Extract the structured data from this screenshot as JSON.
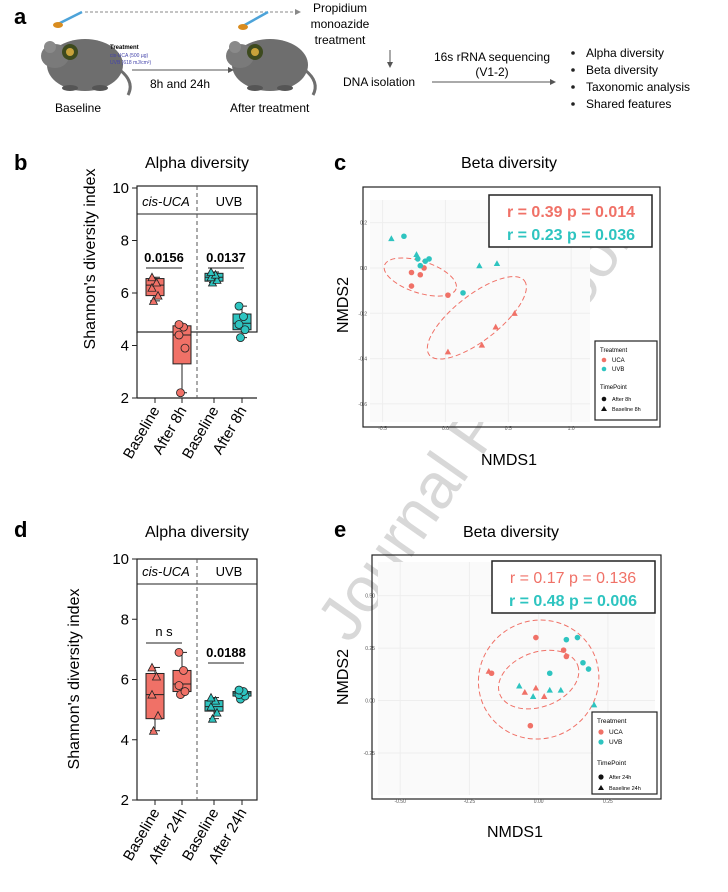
{
  "colors": {
    "uca": "#f07167",
    "uvb": "#2ec4c0",
    "dark": "#222222",
    "grid": "#eeeeee"
  },
  "panel_a": {
    "letter": "a",
    "treatment_title": "Treatment",
    "treatment_lines": [
      "cis-UCA (500 µg)",
      "UVB (618 mJ/cm²)"
    ],
    "baseline_label": "Baseline",
    "after_label": "After treatment",
    "time_label": "8h and 24h",
    "pma_label": [
      "Propidium",
      "monoazide",
      "treatment"
    ],
    "dna_label": "DNA isolation",
    "seq_label": [
      "16s rRNA sequencing",
      "(V1-2)"
    ],
    "analyses": [
      "Alpha diversity",
      "Beta diversity",
      "Taxonomic analysis",
      "Shared features"
    ]
  },
  "panel_b": {
    "letter": "b",
    "title": "Alpha diversity",
    "ylabel": "Shannon's diversity index",
    "yticks": [
      "2",
      "4",
      "6",
      "8",
      "10"
    ],
    "group_labels": [
      "cis-UCA",
      "UVB"
    ],
    "xlabels": [
      "Baseline",
      "After 8h",
      "Baseline",
      "After 8h"
    ],
    "pvalues": [
      "0.0156",
      "0.0137"
    ]
  },
  "panel_d": {
    "letter": "d",
    "title": "Alpha diversity",
    "ylabel": "Shannon's diversity index",
    "yticks": [
      "2",
      "4",
      "6",
      "8",
      "10"
    ],
    "group_labels": [
      "cis-UCA",
      "UVB"
    ],
    "xlabels": [
      "Baseline",
      "After 24h",
      "Baseline",
      "After 24h"
    ],
    "pvalues": [
      "n s",
      "0.0188"
    ]
  },
  "panel_c": {
    "letter": "c",
    "title": "Beta diversity",
    "xlabel": "NMDS1",
    "ylabel": "NMDS2",
    "stats": [
      "r = 0.39 p = 0.014",
      "r = 0.23 p = 0.036"
    ],
    "xticks": [
      "-0.5",
      "0.0",
      "0.5",
      "1.0"
    ],
    "yticks": [
      "0.2",
      "0.0",
      "-0.2",
      "-0.4",
      "-0.6"
    ],
    "legend": {
      "treatment_title": "Treatment",
      "treatments": [
        "UCA",
        "UVB"
      ],
      "time_title": "TimePoint",
      "times": [
        "After 8h",
        "Baseline 8h"
      ]
    }
  },
  "panel_e": {
    "letter": "e",
    "title": "Beta diversity",
    "xlabel": "NMDS1",
    "ylabel": "NMDS2",
    "stats": [
      "r = 0.17 p = 0.136",
      "r = 0.48 p = 0.006"
    ],
    "xticks": [
      "-0.50",
      "-0.25",
      "0.00",
      "0.25"
    ],
    "yticks": [
      "0.50",
      "0.25",
      "0.00",
      "-0.25"
    ],
    "legend": {
      "treatment_title": "Treatment",
      "treatments": [
        "UCA",
        "UVB"
      ],
      "time_title": "TimePoint",
      "times": [
        "After 24h",
        "Baseline 24h"
      ]
    }
  },
  "watermark": "Journal Pre-proof",
  "chart_data": [
    {
      "type": "box",
      "panel": "b",
      "title": "Alpha diversity",
      "ylabel": "Shannon's diversity index",
      "ylim": [
        2,
        10
      ],
      "categories": [
        "Baseline",
        "After 8h",
        "Baseline",
        "After 8h"
      ],
      "groups": [
        "cis-UCA",
        "cis-UCA",
        "UVB",
        "UVB"
      ],
      "boxes": [
        {
          "min": 5.7,
          "q1": 5.9,
          "median": 6.3,
          "q3": 6.55,
          "max": 6.6,
          "points": [
            5.7,
            5.9,
            6.2,
            6.4,
            6.6
          ]
        },
        {
          "min": 2.2,
          "q1": 3.3,
          "median": 4.4,
          "q3": 4.75,
          "max": 4.8,
          "points": [
            2.2,
            3.9,
            4.4,
            4.7,
            4.8
          ]
        },
        {
          "min": 6.4,
          "q1": 6.45,
          "median": 6.6,
          "q3": 6.75,
          "max": 6.8,
          "points": [
            6.4,
            6.5,
            6.6,
            6.7,
            6.8
          ]
        },
        {
          "min": 4.3,
          "q1": 4.6,
          "median": 4.85,
          "q3": 5.2,
          "max": 5.5,
          "points": [
            4.3,
            4.6,
            4.8,
            5.1,
            5.5
          ]
        }
      ],
      "comparisons": [
        {
          "between": [
            "Baseline",
            "After 8h"
          ],
          "group": "cis-UCA",
          "p": "0.0156"
        },
        {
          "between": [
            "Baseline",
            "After 8h"
          ],
          "group": "UVB",
          "p": "0.0137"
        }
      ]
    },
    {
      "type": "scatter",
      "panel": "c",
      "title": "Beta diversity",
      "xlabel": "NMDS1",
      "ylabel": "NMDS2",
      "xlim": [
        -0.6,
        1.15
      ],
      "ylim": [
        -0.68,
        0.3
      ],
      "series": [
        {
          "name": "UCA After 8h",
          "points": [
            [
              -0.27,
              -0.02
            ],
            [
              -0.27,
              -0.08
            ],
            [
              -0.2,
              -0.03
            ],
            [
              -0.17,
              0.0
            ],
            [
              0.02,
              -0.12
            ]
          ]
        },
        {
          "name": "UCA Baseline 8h",
          "points": [
            [
              0.02,
              -0.37
            ],
            [
              0.29,
              -0.34
            ],
            [
              0.4,
              -0.26
            ],
            [
              0.55,
              -0.2
            ]
          ]
        },
        {
          "name": "UVB After 8h",
          "points": [
            [
              -0.33,
              0.14
            ],
            [
              -0.22,
              0.04
            ],
            [
              -0.13,
              0.04
            ],
            [
              -0.2,
              0.01
            ],
            [
              -0.16,
              0.03
            ],
            [
              0.14,
              -0.11
            ]
          ]
        },
        {
          "name": "UVB Baseline 8h",
          "points": [
            [
              -0.43,
              0.13
            ],
            [
              -0.23,
              0.06
            ],
            [
              0.27,
              0.01
            ],
            [
              0.41,
              0.02
            ]
          ]
        }
      ],
      "annotations": [
        "r = 0.39 p = 0.014",
        "r = 0.23 p = 0.036"
      ]
    },
    {
      "type": "box",
      "panel": "d",
      "title": "Alpha diversity",
      "ylabel": "Shannon's diversity index",
      "ylim": [
        2,
        10
      ],
      "categories": [
        "Baseline",
        "After 24h",
        "Baseline",
        "After 24h"
      ],
      "groups": [
        "cis-UCA",
        "cis-UCA",
        "UVB",
        "UVB"
      ],
      "boxes": [
        {
          "min": 4.3,
          "q1": 4.7,
          "median": 5.5,
          "q3": 6.2,
          "max": 6.4,
          "points": [
            4.3,
            4.8,
            5.5,
            6.1,
            6.4
          ]
        },
        {
          "min": 5.5,
          "q1": 5.6,
          "median": 5.85,
          "q3": 6.3,
          "max": 6.9,
          "points": [
            5.5,
            5.6,
            5.8,
            6.3,
            6.9
          ]
        },
        {
          "min": 4.7,
          "q1": 4.95,
          "median": 5.1,
          "q3": 5.3,
          "max": 5.4,
          "points": [
            4.7,
            4.9,
            5.1,
            5.3,
            5.4
          ]
        },
        {
          "min": 5.35,
          "q1": 5.45,
          "median": 5.55,
          "q3": 5.6,
          "max": 5.65,
          "points": [
            5.35,
            5.45,
            5.5,
            5.6,
            5.65
          ]
        }
      ],
      "comparisons": [
        {
          "between": [
            "Baseline",
            "After 24h"
          ],
          "group": "cis-UCA",
          "p": "n s"
        },
        {
          "between": [
            "Baseline",
            "After 24h"
          ],
          "group": "UVB",
          "p": "0.0188"
        }
      ]
    },
    {
      "type": "scatter",
      "panel": "e",
      "title": "Beta diversity",
      "xlabel": "NMDS1",
      "ylabel": "NMDS2",
      "xlim": [
        -0.58,
        0.42
      ],
      "ylim": [
        -0.45,
        0.66
      ],
      "series": [
        {
          "name": "UCA After 24h",
          "points": [
            [
              -0.03,
              -0.12
            ],
            [
              -0.17,
              0.13
            ],
            [
              -0.01,
              0.3
            ],
            [
              0.09,
              0.24
            ],
            [
              0.1,
              0.21
            ]
          ]
        },
        {
          "name": "UCA Baseline 24h",
          "points": [
            [
              -0.18,
              0.14
            ],
            [
              -0.05,
              0.04
            ],
            [
              0.02,
              0.02
            ],
            [
              -0.01,
              0.06
            ]
          ]
        },
        {
          "name": "UVB After 24h",
          "points": [
            [
              0.14,
              0.3
            ],
            [
              0.16,
              0.18
            ],
            [
              0.18,
              0.15
            ],
            [
              0.1,
              0.29
            ],
            [
              0.04,
              0.13
            ]
          ]
        },
        {
          "name": "UVB Baseline 24h",
          "points": [
            [
              -0.07,
              0.07
            ],
            [
              -0.02,
              0.02
            ],
            [
              0.04,
              0.05
            ],
            [
              0.08,
              0.05
            ],
            [
              0.2,
              -0.02
            ]
          ]
        }
      ],
      "annotations": [
        "r = 0.17 p = 0.136",
        "r = 0.48 p = 0.006"
      ]
    }
  ]
}
